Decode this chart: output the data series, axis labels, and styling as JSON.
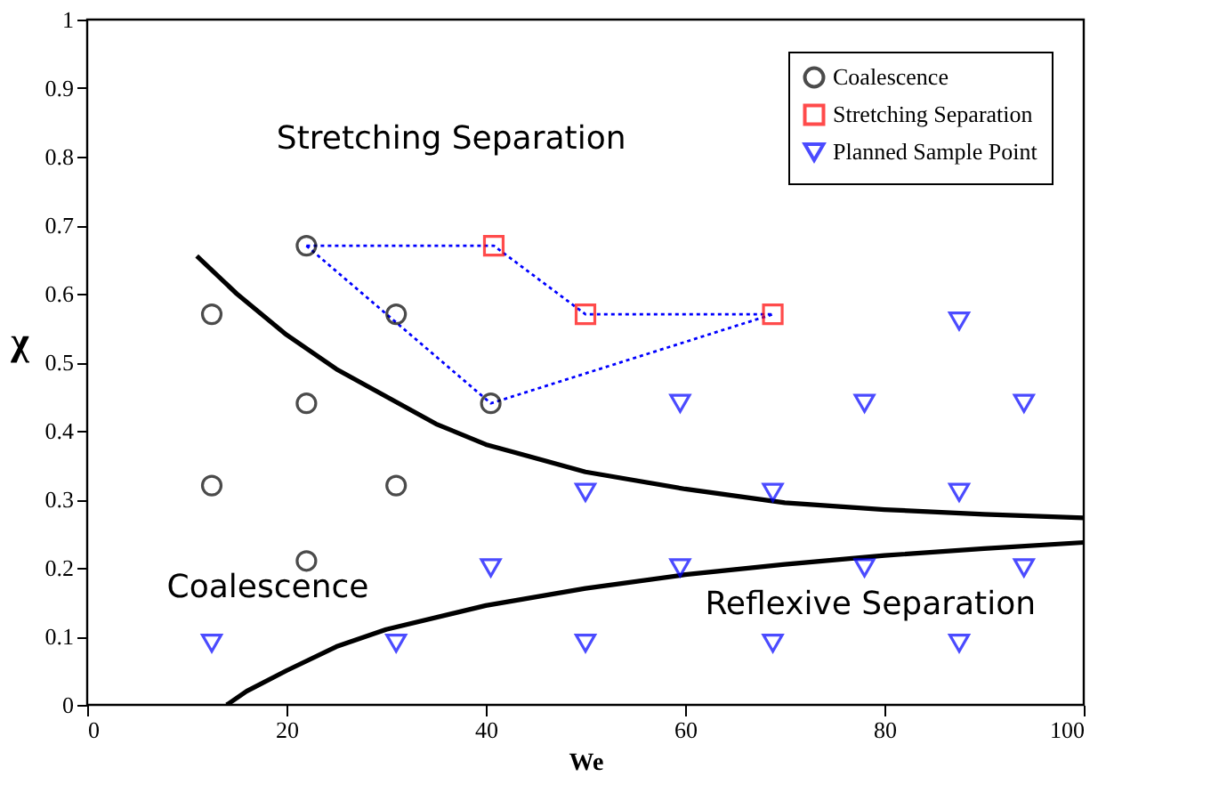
{
  "chart_data": {
    "type": "scatter",
    "xlabel": "We",
    "ylabel": "χ",
    "xlim": [
      0,
      100
    ],
    "xticks": [
      0,
      20,
      40,
      60,
      80,
      100
    ],
    "ylim": [
      0,
      1
    ],
    "yticks": [
      0,
      0.1,
      0.2,
      0.3,
      0.4,
      0.5,
      0.6,
      0.7,
      0.8,
      0.9,
      1
    ],
    "grid": false,
    "legend": "top right",
    "series": [
      {
        "name": "Coalescence",
        "marker": "circle",
        "color": "#000000",
        "x": [
          12.5,
          12.5,
          22,
          22,
          22,
          31,
          31,
          40.5
        ],
        "values": [
          0.57,
          0.32,
          0.67,
          0.44,
          0.21,
          0.57,
          0.32,
          0.44
        ]
      },
      {
        "name": "Stretching Separation",
        "marker": "square",
        "color": "#ff0000",
        "x": [
          40.8,
          50,
          68.8
        ],
        "values": [
          0.67,
          0.57,
          0.57
        ]
      },
      {
        "name": "Planned Sample Point",
        "marker": "triangle",
        "color": "#0000ff",
        "x": [
          12.5,
          31,
          40.5,
          50,
          50,
          59.5,
          59.5,
          68.8,
          68.8,
          78,
          78,
          87.5,
          87.5,
          87.5,
          94,
          94
        ],
        "values": [
          0.09,
          0.09,
          0.2,
          0.31,
          0.09,
          0.44,
          0.2,
          0.31,
          0.09,
          0.44,
          0.2,
          0.56,
          0.31,
          0.09,
          0.44,
          0.2
        ]
      },
      {
        "type": "line",
        "line_style": "dotted",
        "color": "#0000ff",
        "x": [
          22,
          40.8,
          50,
          68.8
        ],
        "values": [
          0.67,
          0.67,
          0.57,
          0.57
        ]
      },
      {
        "type": "line",
        "line_style": "dotted",
        "color": "#0000ff",
        "x": [
          22,
          40.5,
          68.8
        ],
        "values": [
          0.67,
          0.44,
          0.57
        ]
      },
      {
        "type": "line",
        "line_style": "solid",
        "color": "#000000",
        "x": [
          11,
          15,
          20,
          25,
          30,
          35,
          40,
          50,
          60,
          70,
          80,
          90,
          100
        ],
        "values": [
          0.655,
          0.6,
          0.54,
          0.49,
          0.45,
          0.41,
          0.38,
          0.34,
          0.315,
          0.295,
          0.285,
          0.278,
          0.273
        ]
      },
      {
        "type": "line",
        "line_style": "solid",
        "color": "#000000",
        "x": [
          14,
          16,
          20,
          25,
          30,
          40,
          50,
          60,
          70,
          80,
          90,
          100
        ],
        "values": [
          0,
          0.02,
          0.05,
          0.085,
          0.11,
          0.145,
          0.17,
          0.19,
          0.205,
          0.218,
          0.228,
          0.237
        ]
      }
    ],
    "annotations": [
      "Stretching Separation",
      "Coalescence",
      "Reflexive Separation"
    ]
  }
}
